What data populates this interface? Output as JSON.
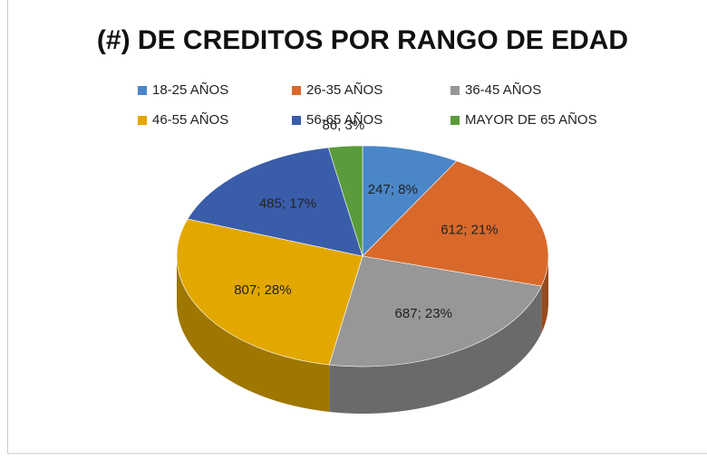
{
  "chart_data": {
    "type": "pie3d",
    "title": "(#) DE CREDITOS POR RANGO DE EDAD",
    "categories": [
      "18-25 AÑOS",
      "26-35 AÑOS",
      "36-45 AÑOS",
      "46-55 AÑOS",
      "56-65 AÑOS",
      "MAYOR DE 65 AÑOS"
    ],
    "values": [
      247,
      612,
      687,
      807,
      485,
      86
    ],
    "value_labels": [
      "247; 8%",
      "612; 21%",
      "687; 23%",
      "807; 28%",
      "485; 17%",
      "86; 3%"
    ],
    "colors": [
      "#4a86c8",
      "#d8692a",
      "#979797",
      "#e2a800",
      "#3a5daa",
      "#5a9b3b"
    ],
    "legend": "top"
  }
}
